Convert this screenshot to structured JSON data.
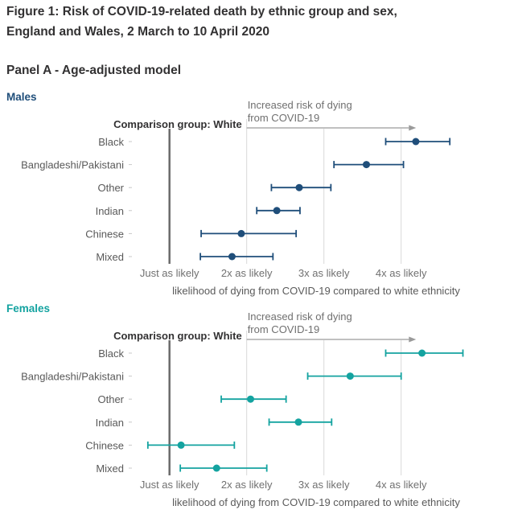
{
  "header": {
    "title_line1": "Figure 1: Risk of COVID-19-related death by ethnic group and sex,",
    "title_line2": "England and Wales, 2 March to 10 April 2020",
    "panel": "Panel A - Age-adjusted model"
  },
  "colors": {
    "males": "#1f4e7a",
    "females": "#14a3a0",
    "text": "#323132",
    "label": "#595959",
    "gridline": "#d9d9d9",
    "reference_line": "#6b6b6b"
  },
  "chart_data": [
    {
      "type": "scatter",
      "subtitle": "Males",
      "comparison_label": "Comparison group: White",
      "annotation": [
        "Increased risk of dying",
        "from COVID-19"
      ],
      "categories": [
        "Black",
        "Bangladeshi/Pakistani",
        "Other",
        "Indian",
        "Chinese",
        "Mixed"
      ],
      "series": [
        {
          "name": "Males",
          "values": [
            4.19,
            3.55,
            2.68,
            2.39,
            1.93,
            1.81
          ],
          "ci_lower": [
            3.8,
            3.13,
            2.32,
            2.13,
            1.41,
            1.4
          ],
          "ci_upper": [
            4.63,
            4.03,
            3.09,
            2.69,
            2.64,
            2.34
          ]
        }
      ],
      "xticks": [
        1,
        2,
        3,
        4
      ],
      "xtick_labels": [
        "Just as likely",
        "2x as likely",
        "3x as likely",
        "4x as likely"
      ],
      "xlabel": "likelihood of dying from COVID-19 compared to white ethnicity",
      "ylabel": "",
      "xlim": [
        0.6,
        5.0
      ],
      "reference_value": 1,
      "grid": true,
      "legend": "none"
    },
    {
      "type": "scatter",
      "subtitle": "Females",
      "comparison_label": "Comparison group: White",
      "annotation": [
        "Increased risk of dying",
        "from COVID-19"
      ],
      "categories": [
        "Black",
        "Bangladeshi/Pakistani",
        "Other",
        "Indian",
        "Chinese",
        "Mixed"
      ],
      "series": [
        {
          "name": "Females",
          "values": [
            4.27,
            3.34,
            2.05,
            2.67,
            1.15,
            1.61
          ],
          "ci_lower": [
            3.8,
            2.79,
            1.67,
            2.29,
            0.72,
            1.14
          ],
          "ci_upper": [
            4.8,
            4.0,
            2.51,
            3.1,
            1.84,
            2.26
          ]
        }
      ],
      "xticks": [
        1,
        2,
        3,
        4
      ],
      "xtick_labels": [
        "Just as likely",
        "2x as likely",
        "3x as likely",
        "4x as likely"
      ],
      "xlabel": "likelihood of dying from COVID-19 compared to white ethnicity",
      "ylabel": "",
      "xlim": [
        0.6,
        5.0
      ],
      "reference_value": 1,
      "grid": true,
      "legend": "none"
    }
  ]
}
